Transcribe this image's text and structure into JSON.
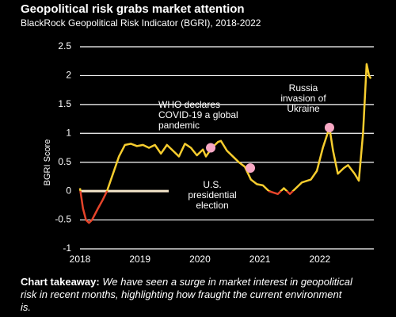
{
  "chart_data": {
    "type": "line",
    "title": "Geopolitical risk grabs market attention",
    "subtitle": "BlackRock Geopolitical Risk Indicator (BGRI), 2018-2022",
    "y_label": "BGRI Score",
    "xlim": [
      2018,
      2022.9
    ],
    "xticks": [
      2018,
      2019,
      2020,
      2021,
      2022
    ],
    "ylim": [
      -1,
      2.5
    ],
    "yticks": [
      -1,
      -0.5,
      0,
      0.5,
      1,
      1.5,
      2,
      2.5
    ],
    "grid": true,
    "zero_line_color": "#f6e7cc",
    "series": [
      {
        "color": "#f7cd2e",
        "negative_color": "#e5442a",
        "x": [
          2018.0,
          2018.05,
          2018.1,
          2018.15,
          2018.2,
          2018.3,
          2018.38,
          2018.45,
          2018.55,
          2018.65,
          2018.75,
          2018.85,
          2018.95,
          2019.05,
          2019.15,
          2019.25,
          2019.35,
          2019.45,
          2019.55,
          2019.65,
          2019.75,
          2019.85,
          2019.95,
          2020.05,
          2020.1,
          2020.2,
          2020.3,
          2020.35,
          2020.45,
          2020.55,
          2020.65,
          2020.75,
          2020.85,
          2020.95,
          2021.05,
          2021.15,
          2021.3,
          2021.4,
          2021.5,
          2021.6,
          2021.7,
          2021.85,
          2021.95,
          2022.05,
          2022.16,
          2022.22,
          2022.3,
          2022.4,
          2022.47,
          2022.58,
          2022.65,
          2022.72,
          2022.78,
          2022.82,
          2022.85
        ],
        "values": [
          0.05,
          -0.3,
          -0.5,
          -0.55,
          -0.5,
          -0.3,
          -0.15,
          0.0,
          0.3,
          0.6,
          0.8,
          0.82,
          0.78,
          0.8,
          0.75,
          0.8,
          0.65,
          0.8,
          0.7,
          0.6,
          0.82,
          0.75,
          0.62,
          0.72,
          0.6,
          0.75,
          0.85,
          0.87,
          0.7,
          0.6,
          0.5,
          0.42,
          0.2,
          0.12,
          0.1,
          0.0,
          -0.05,
          0.05,
          -0.05,
          0.05,
          0.15,
          0.2,
          0.35,
          0.75,
          1.1,
          0.7,
          0.3,
          0.4,
          0.45,
          0.3,
          0.18,
          1.0,
          2.2,
          2.0,
          1.95
        ]
      }
    ],
    "annotations": [
      {
        "x": 2020.18,
        "y": 0.75,
        "lines": [
          "WHO declares",
          "COVID-19 a global",
          "pandemic"
        ]
      },
      {
        "x": 2020.84,
        "y": 0.4,
        "lines": [
          "U.S.",
          "presidential",
          "election"
        ]
      },
      {
        "x": 2022.16,
        "y": 1.1,
        "lines": [
          "Russia",
          "invasion of",
          "Ukraine"
        ]
      }
    ],
    "marker_color": "#f7a8c4",
    "takeaway_label": "Chart takeaway:",
    "takeaway_text": "We have seen a surge in market interest in geopolitical risk in recent months, highlighting how fraught the current environment is."
  }
}
